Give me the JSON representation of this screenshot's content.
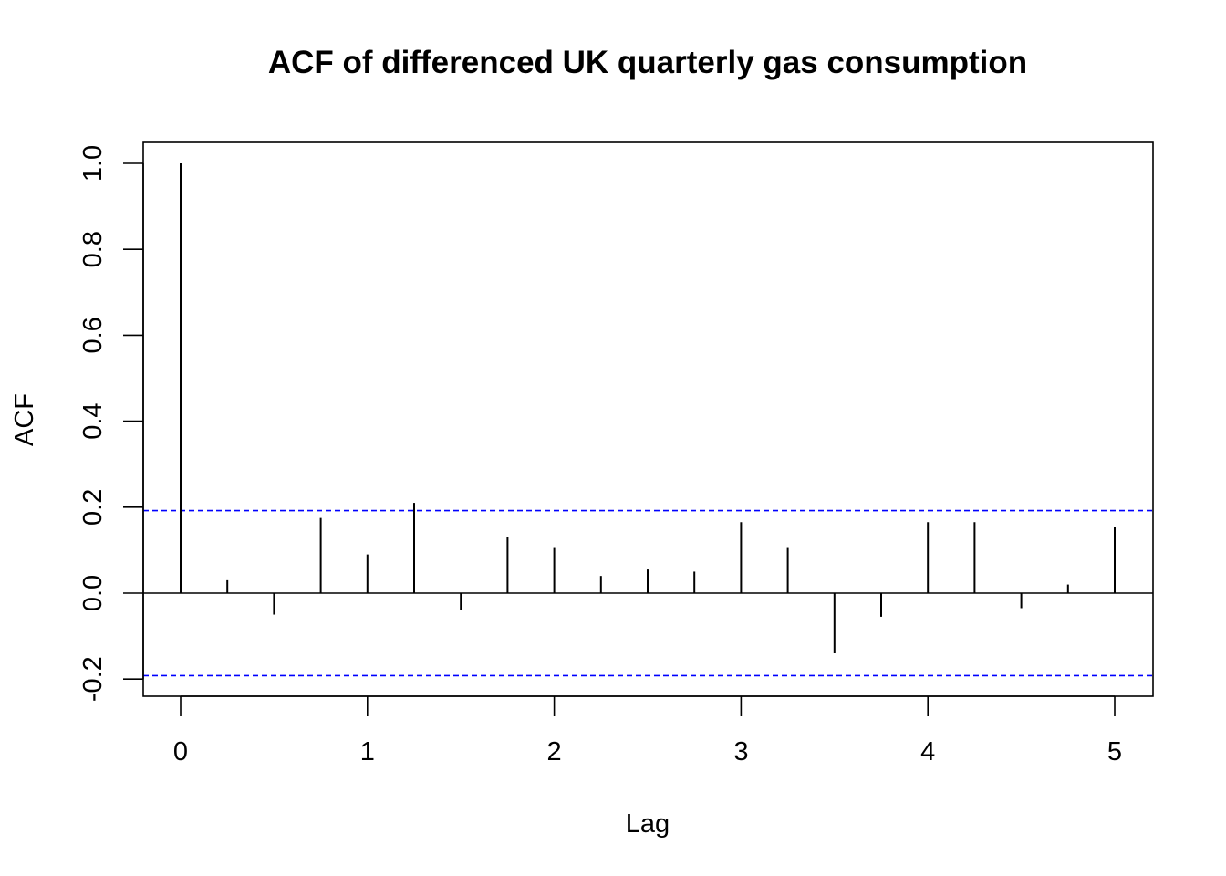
{
  "chart_data": {
    "type": "bar",
    "title": "ACF of differenced UK quarterly gas consumption",
    "xlabel": "Lag",
    "ylabel": "ACF",
    "x": [
      0,
      0.25,
      0.5,
      0.75,
      1,
      1.25,
      1.5,
      1.75,
      2,
      2.25,
      2.5,
      2.75,
      3,
      3.25,
      3.5,
      3.75,
      4,
      4.25,
      4.5,
      4.75,
      5
    ],
    "values": [
      1.0,
      0.03,
      -0.05,
      0.175,
      0.09,
      0.21,
      -0.04,
      0.13,
      0.105,
      0.04,
      0.055,
      0.05,
      0.165,
      0.105,
      -0.14,
      -0.055,
      0.165,
      0.165,
      -0.035,
      0.02,
      0.155
    ],
    "confidence_limits": [
      0.192,
      -0.192
    ],
    "confidence_line_color": "#0000ff",
    "bar_color": "#000000",
    "zero_line": true,
    "xlim": [
      -0.2,
      5.2
    ],
    "ylim": [
      -0.24,
      1.05
    ],
    "x_ticks": [
      "0",
      "1",
      "2",
      "3",
      "4",
      "5"
    ],
    "y_ticks": [
      "-0.2",
      "0.0",
      "0.2",
      "0.4",
      "0.6",
      "0.8",
      "1.0"
    ],
    "grid": false,
    "legend": "none"
  }
}
